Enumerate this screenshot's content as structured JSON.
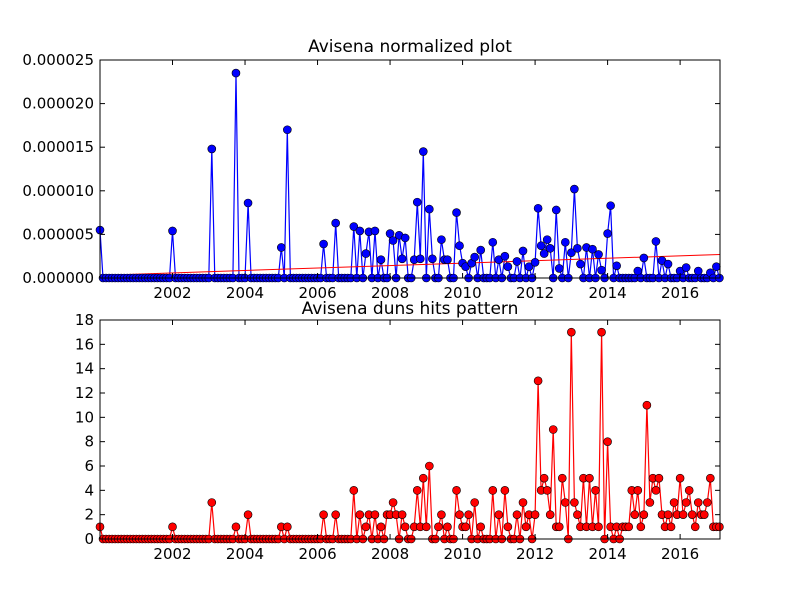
{
  "chart_data": [
    {
      "type": "line",
      "title": "Avisena normalized plot",
      "xlabel": "",
      "ylabel": "",
      "xlim": [
        2000.0,
        2017.1
      ],
      "ylim": [
        0,
        2.5e-05
      ],
      "x_ticks": [
        2002,
        2004,
        2006,
        2008,
        2010,
        2012,
        2014,
        2016
      ],
      "y_ticks": [
        0,
        5e-06,
        1e-05,
        1.5e-05,
        2e-05,
        2.5e-05
      ],
      "y_tick_labels": [
        "0.000000",
        "0.000005",
        "0.000010",
        "0.000015",
        "0.000020",
        "0.000025"
      ],
      "grid": false,
      "colors": {
        "series": "#0000ff",
        "trend": "#ff0000"
      },
      "series": [
        {
          "x": [
            2000.0,
            2002.0,
            2003.08,
            2003.75,
            2004.08,
            2005.0,
            2005.17,
            2006.17,
            2006.5,
            2007.0,
            2007.17,
            2007.33,
            2007.42,
            2007.58,
            2007.75,
            2008.0,
            2008.08,
            2008.25,
            2008.33,
            2008.42,
            2008.67,
            2008.75,
            2008.83,
            2008.92,
            2009.08,
            2009.17,
            2009.42,
            2009.5,
            2009.58,
            2009.83,
            2009.92,
            2010.0,
            2010.08,
            2010.25,
            2010.33,
            2010.5,
            2010.83,
            2011.0,
            2011.17,
            2011.25,
            2011.5,
            2011.67,
            2011.83,
            2012.0,
            2012.08,
            2012.17,
            2012.25,
            2012.33,
            2012.42,
            2012.58,
            2012.67,
            2012.83,
            2013.0,
            2013.08,
            2013.17,
            2013.25,
            2013.42,
            2013.58,
            2013.75,
            2013.83,
            2014.0,
            2014.08,
            2014.25,
            2014.83,
            2015.0,
            2015.33,
            2015.5,
            2015.67,
            2016.0,
            2016.17,
            2016.5,
            2016.83,
            2017.0
          ],
          "values": [
            5.5e-06,
            5.4e-06,
            1.48e-05,
            2.35e-05,
            8.6e-06,
            3.5e-06,
            1.7e-05,
            3.9e-06,
            6.3e-06,
            5.9e-06,
            5.4e-06,
            2.8e-06,
            5.3e-06,
            5.4e-06,
            2.1e-06,
            5.1e-06,
            4.3e-06,
            4.9e-06,
            2.2e-06,
            4.6e-06,
            2.1e-06,
            8.7e-06,
            2.2e-06,
            1.45e-05,
            7.9e-06,
            2.2e-06,
            4.4e-06,
            2.1e-06,
            2.1e-06,
            7.5e-06,
            3.7e-06,
            1.7e-06,
            1.3e-06,
            1.7e-06,
            2.4e-06,
            3.2e-06,
            4.1e-06,
            2.1e-06,
            2.5e-06,
            1.3e-06,
            1.9e-06,
            3.1e-06,
            1.3e-06,
            1.8e-06,
            8e-06,
            3.7e-06,
            2.8e-06,
            4.4e-06,
            3.4e-06,
            7.8e-06,
            1.1e-06,
            4.1e-06,
            2.9e-06,
            1.02e-05,
            3.4e-06,
            1.6e-06,
            3.5e-06,
            3.3e-06,
            2.7e-06,
            9e-07,
            5.1e-06,
            8.3e-06,
            1.4e-06,
            8e-07,
            2.3e-06,
            4.2e-06,
            2e-06,
            1.6e-06,
            8e-07,
            1.2e-06,
            8e-07,
            6e-07,
            1.3e-06
          ]
        }
      ],
      "baseline_months": "monthly points at 0 between the listed values",
      "trend_line": {
        "x": [
          2000.0,
          2017.1
        ],
        "values": [
          3e-07,
          2.7e-06
        ]
      }
    },
    {
      "type": "line",
      "title": "Avisena duns hits pattern",
      "xlabel": "",
      "ylabel": "",
      "xlim": [
        2000.0,
        2017.1
      ],
      "ylim": [
        0,
        18
      ],
      "x_ticks": [
        2002,
        2004,
        2006,
        2008,
        2010,
        2012,
        2014,
        2016
      ],
      "y_ticks": [
        0,
        2,
        4,
        6,
        8,
        10,
        12,
        14,
        16,
        18
      ],
      "grid": false,
      "colors": {
        "series": "#ff0000"
      },
      "series": [
        {
          "x": [
            2000.0,
            2002.0,
            2003.08,
            2003.75,
            2004.08,
            2005.0,
            2005.17,
            2006.17,
            2006.5,
            2007.0,
            2007.17,
            2007.33,
            2007.42,
            2007.58,
            2007.75,
            2007.92,
            2008.0,
            2008.08,
            2008.17,
            2008.33,
            2008.42,
            2008.67,
            2008.75,
            2008.83,
            2008.92,
            2009.0,
            2009.08,
            2009.33,
            2009.42,
            2009.58,
            2009.83,
            2009.92,
            2010.0,
            2010.08,
            2010.17,
            2010.33,
            2010.5,
            2010.83,
            2011.0,
            2011.17,
            2011.25,
            2011.5,
            2011.67,
            2011.75,
            2011.83,
            2012.0,
            2012.08,
            2012.17,
            2012.25,
            2012.33,
            2012.42,
            2012.5,
            2012.58,
            2012.67,
            2012.75,
            2012.83,
            2013.0,
            2013.08,
            2013.17,
            2013.25,
            2013.33,
            2013.42,
            2013.5,
            2013.58,
            2013.67,
            2013.75,
            2013.83,
            2014.0,
            2014.08,
            2014.25,
            2014.42,
            2014.5,
            2014.58,
            2014.67,
            2014.75,
            2014.83,
            2014.92,
            2015.0,
            2015.08,
            2015.17,
            2015.25,
            2015.33,
            2015.42,
            2015.5,
            2015.58,
            2015.67,
            2015.75,
            2015.83,
            2015.92,
            2016.0,
            2016.08,
            2016.17,
            2016.25,
            2016.33,
            2016.42,
            2016.5,
            2016.58,
            2016.67,
            2016.75,
            2016.83,
            2016.92,
            2017.0,
            2017.08
          ],
          "values": [
            1,
            1,
            3,
            1,
            2,
            1,
            1,
            2,
            2,
            4,
            2,
            1,
            2,
            2,
            1,
            2,
            2,
            3,
            2,
            2,
            1,
            1,
            4,
            1,
            5,
            1,
            6,
            1,
            2,
            1,
            4,
            2,
            1,
            1,
            2,
            3,
            1,
            4,
            2,
            4,
            1,
            2,
            3,
            1,
            2,
            2,
            13,
            4,
            5,
            4,
            2,
            9,
            1,
            1,
            5,
            3,
            17,
            3,
            2,
            1,
            5,
            1,
            5,
            1,
            4,
            1,
            17,
            8,
            1,
            1,
            1,
            1,
            1,
            4,
            2,
            4,
            1,
            2,
            11,
            3,
            5,
            4,
            5,
            2,
            1,
            2,
            1,
            3,
            2,
            5,
            2,
            3,
            4,
            2,
            1,
            3,
            2,
            2,
            3,
            5,
            1,
            1,
            1
          ],
          "trailing_x": [
            2017.1
          ],
          "trailing_values": [
            1
          ]
        }
      ],
      "baseline_months": "monthly points at 0 between the listed values"
    }
  ]
}
